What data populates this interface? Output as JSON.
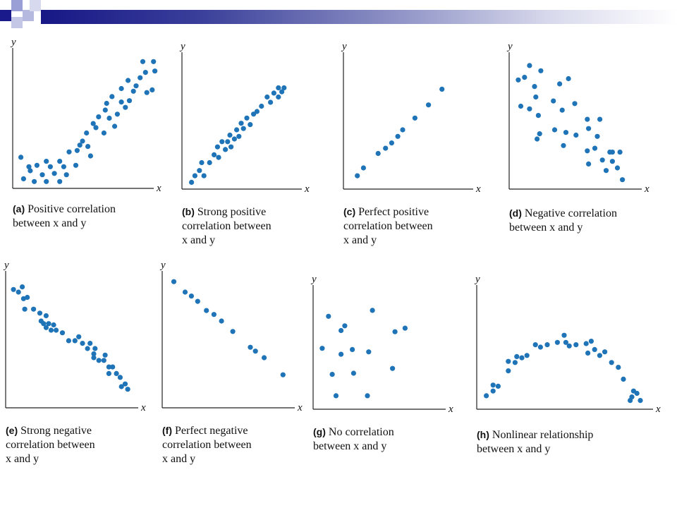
{
  "theme": {
    "dot_color": "#1f73b7",
    "band_color_dark": "#171786",
    "logo_dark": "#1a1a8c",
    "logo_light": "#9aa0d6"
  },
  "chart_data": [
    {
      "id": "a",
      "type": "scatter",
      "xlabel": "x",
      "ylabel": "y",
      "xlim": [
        0,
        10
      ],
      "ylim": [
        0,
        10
      ],
      "caption_tag": "(a)",
      "caption_text": "Positive correlation\nbetween x and y",
      "points": [
        [
          0.4,
          2.1
        ],
        [
          1.0,
          1.4
        ],
        [
          1.6,
          1.5
        ],
        [
          2.3,
          1.8
        ],
        [
          2.6,
          1.4
        ],
        [
          3.3,
          1.8
        ],
        [
          3.6,
          1.4
        ],
        [
          0.6,
          0.5
        ],
        [
          1.1,
          1.1
        ],
        [
          1.4,
          0.3
        ],
        [
          2.0,
          0.8
        ],
        [
          2.3,
          0.3
        ],
        [
          2.9,
          0.9
        ],
        [
          3.3,
          0.3
        ],
        [
          3.8,
          0.8
        ],
        [
          4.0,
          2.5
        ],
        [
          4.5,
          1.5
        ],
        [
          4.6,
          2.6
        ],
        [
          4.8,
          3.0
        ],
        [
          5.0,
          3.3
        ],
        [
          5.3,
          3.9
        ],
        [
          5.4,
          2.9
        ],
        [
          5.6,
          2.2
        ],
        [
          5.8,
          4.6
        ],
        [
          6.0,
          4.3
        ],
        [
          6.2,
          5.1
        ],
        [
          6.6,
          3.9
        ],
        [
          6.7,
          5.6
        ],
        [
          6.8,
          6.1
        ],
        [
          7.0,
          5.0
        ],
        [
          7.2,
          6.6
        ],
        [
          7.4,
          4.4
        ],
        [
          7.6,
          5.3
        ],
        [
          7.9,
          6.2
        ],
        [
          7.9,
          7.2
        ],
        [
          8.2,
          5.8
        ],
        [
          8.5,
          6.3
        ],
        [
          8.4,
          7.8
        ],
        [
          8.8,
          7.0
        ],
        [
          9.3,
          8.0
        ],
        [
          9.0,
          7.4
        ],
        [
          9.8,
          6.9
        ],
        [
          9.7,
          8.4
        ],
        [
          9.5,
          9.2
        ],
        [
          10.2,
          7.1
        ],
        [
          10.4,
          8.5
        ],
        [
          10.3,
          9.2
        ]
      ]
    },
    {
      "id": "b",
      "type": "scatter",
      "xlabel": "x",
      "ylabel": "y",
      "xlim": [
        0,
        10
      ],
      "ylim": [
        0,
        10
      ],
      "caption_tag": "(b)",
      "caption_text": "Strong positive\ncorrelation between\nx and y",
      "points": [
        [
          0.6,
          0.3
        ],
        [
          0.9,
          0.8
        ],
        [
          1.3,
          1.2
        ],
        [
          1.7,
          0.8
        ],
        [
          1.5,
          1.8
        ],
        [
          2.2,
          1.8
        ],
        [
          2.6,
          2.4
        ],
        [
          3.0,
          2.2
        ],
        [
          2.9,
          3.0
        ],
        [
          3.3,
          3.4
        ],
        [
          3.6,
          2.8
        ],
        [
          3.8,
          3.4
        ],
        [
          4.0,
          3.9
        ],
        [
          4.1,
          3.0
        ],
        [
          4.4,
          3.6
        ],
        [
          4.6,
          4.3
        ],
        [
          4.8,
          3.8
        ],
        [
          5.0,
          4.8
        ],
        [
          5.2,
          4.4
        ],
        [
          5.5,
          5.2
        ],
        [
          5.8,
          4.7
        ],
        [
          6.1,
          5.5
        ],
        [
          6.4,
          5.7
        ],
        [
          6.8,
          6.1
        ],
        [
          7.3,
          6.8
        ],
        [
          7.6,
          6.4
        ],
        [
          7.9,
          7.1
        ],
        [
          8.3,
          6.8
        ],
        [
          8.6,
          7.2
        ],
        [
          8.3,
          7.5
        ],
        [
          8.8,
          7.5
        ]
      ]
    },
    {
      "id": "c",
      "type": "scatter",
      "xlabel": "x",
      "ylabel": "y",
      "xlim": [
        0,
        10
      ],
      "ylim": [
        0,
        10
      ],
      "caption_tag": "(c)",
      "caption_text": "Perfect positive\ncorrelation between\nx and y",
      "points": [
        [
          0.9,
          0.8
        ],
        [
          1.4,
          1.4
        ],
        [
          2.6,
          2.5
        ],
        [
          3.2,
          2.9
        ],
        [
          3.7,
          3.3
        ],
        [
          4.2,
          3.8
        ],
        [
          4.6,
          4.3
        ],
        [
          5.6,
          5.2
        ],
        [
          6.7,
          6.2
        ],
        [
          7.8,
          7.4
        ]
      ]
    },
    {
      "id": "d",
      "type": "scatter",
      "xlabel": "x",
      "ylabel": "y",
      "xlim": [
        0,
        10
      ],
      "ylim": [
        0,
        10
      ],
      "caption_tag": "(d)",
      "caption_text": "Negative correlation\nbetween x and y",
      "points": [
        [
          0.5,
          8.1
        ],
        [
          1.0,
          8.3
        ],
        [
          1.4,
          9.2
        ],
        [
          1.8,
          7.6
        ],
        [
          2.3,
          8.8
        ],
        [
          0.7,
          6.1
        ],
        [
          1.4,
          5.9
        ],
        [
          1.9,
          6.8
        ],
        [
          2.1,
          5.4
        ],
        [
          2.2,
          4.0
        ],
        [
          2.0,
          3.6
        ],
        [
          3.3,
          6.5
        ],
        [
          3.4,
          4.3
        ],
        [
          3.8,
          7.8
        ],
        [
          4.0,
          5.8
        ],
        [
          4.3,
          4.1
        ],
        [
          4.1,
          3.1
        ],
        [
          4.5,
          8.2
        ],
        [
          5.0,
          6.3
        ],
        [
          5.1,
          3.9
        ],
        [
          6.0,
          5.1
        ],
        [
          6.1,
          4.4
        ],
        [
          6.0,
          2.7
        ],
        [
          6.1,
          1.7
        ],
        [
          6.6,
          2.9
        ],
        [
          6.8,
          3.8
        ],
        [
          7.0,
          5.1
        ],
        [
          7.2,
          2.0
        ],
        [
          7.5,
          1.2
        ],
        [
          7.8,
          2.6
        ],
        [
          8.0,
          2.6
        ],
        [
          8.0,
          1.9
        ],
        [
          8.4,
          1.4
        ],
        [
          8.6,
          2.6
        ],
        [
          8.8,
          0.5
        ]
      ]
    },
    {
      "id": "e",
      "type": "scatter",
      "xlabel": "x",
      "ylabel": "y",
      "xlim": [
        0,
        10
      ],
      "ylim": [
        0,
        10
      ],
      "caption_tag": "(e)",
      "caption_text": "Strong negative\ncorrelation between\nx and y",
      "points": [
        [
          0.4,
          8.8
        ],
        [
          0.8,
          8.6
        ],
        [
          1.1,
          9.0
        ],
        [
          1.2,
          8.1
        ],
        [
          1.5,
          8.2
        ],
        [
          1.3,
          7.3
        ],
        [
          2.0,
          7.3
        ],
        [
          2.5,
          7.0
        ],
        [
          3.0,
          6.8
        ],
        [
          2.6,
          6.4
        ],
        [
          2.8,
          6.2
        ],
        [
          3.2,
          6.2
        ],
        [
          3.6,
          6.1
        ],
        [
          3.0,
          5.9
        ],
        [
          3.4,
          5.7
        ],
        [
          3.8,
          5.7
        ],
        [
          4.3,
          5.5
        ],
        [
          4.8,
          4.9
        ],
        [
          5.3,
          4.9
        ],
        [
          5.6,
          5.2
        ],
        [
          5.9,
          4.7
        ],
        [
          6.3,
          4.3
        ],
        [
          6.5,
          4.7
        ],
        [
          6.8,
          3.9
        ],
        [
          6.8,
          3.6
        ],
        [
          6.9,
          4.3
        ],
        [
          7.2,
          3.4
        ],
        [
          7.6,
          3.4
        ],
        [
          7.7,
          3.8
        ],
        [
          8.0,
          2.9
        ],
        [
          8.3,
          2.9
        ],
        [
          8.0,
          2.4
        ],
        [
          8.6,
          2.4
        ],
        [
          8.9,
          2.1
        ],
        [
          9.0,
          1.4
        ],
        [
          9.3,
          1.6
        ],
        [
          9.5,
          1.2
        ]
      ]
    },
    {
      "id": "f",
      "type": "scatter",
      "xlabel": "x",
      "ylabel": "y",
      "xlim": [
        0,
        10
      ],
      "ylim": [
        0,
        10
      ],
      "caption_tag": "(f)",
      "caption_text": "Perfect negative\ncorrelation between\nx and y",
      "points": [
        [
          0.7,
          9.4
        ],
        [
          1.6,
          8.6
        ],
        [
          2.1,
          8.3
        ],
        [
          2.6,
          7.9
        ],
        [
          3.3,
          7.2
        ],
        [
          3.9,
          6.9
        ],
        [
          4.5,
          6.4
        ],
        [
          5.4,
          5.6
        ],
        [
          6.8,
          4.4
        ],
        [
          7.2,
          4.1
        ],
        [
          7.9,
          3.6
        ],
        [
          9.4,
          2.3
        ]
      ]
    },
    {
      "id": "g",
      "type": "scatter",
      "xlabel": "x",
      "ylabel": "y",
      "xlim": [
        0,
        10
      ],
      "ylim": [
        0,
        10
      ],
      "caption_tag": "(g)",
      "caption_text": "No correlation\nbetween x and y",
      "points": [
        [
          0.5,
          4.9
        ],
        [
          1.0,
          7.6
        ],
        [
          2.0,
          6.4
        ],
        [
          2.3,
          6.8
        ],
        [
          4.5,
          8.1
        ],
        [
          2.0,
          4.4
        ],
        [
          2.9,
          4.8
        ],
        [
          1.3,
          2.7
        ],
        [
          3.0,
          2.8
        ],
        [
          1.6,
          0.9
        ],
        [
          4.2,
          4.6
        ],
        [
          4.1,
          0.9
        ],
        [
          6.3,
          6.3
        ],
        [
          7.1,
          6.6
        ],
        [
          6.1,
          3.2
        ]
      ]
    },
    {
      "id": "h",
      "type": "scatter",
      "xlabel": "x",
      "ylabel": "y",
      "xlim": [
        0,
        10
      ],
      "ylim": [
        0,
        10
      ],
      "caption_tag": "(h)",
      "caption_text": "Nonlinear relationship\nbetween x and y",
      "points": [
        [
          0.4,
          0.9
        ],
        [
          0.8,
          1.3
        ],
        [
          0.8,
          1.8
        ],
        [
          1.1,
          1.7
        ],
        [
          1.7,
          3.0
        ],
        [
          1.7,
          3.8
        ],
        [
          2.1,
          3.7
        ],
        [
          2.2,
          4.2
        ],
        [
          2.5,
          4.1
        ],
        [
          2.8,
          4.3
        ],
        [
          3.3,
          5.2
        ],
        [
          3.6,
          5.0
        ],
        [
          4.0,
          5.2
        ],
        [
          4.6,
          5.4
        ],
        [
          5.0,
          6.0
        ],
        [
          5.1,
          5.4
        ],
        [
          5.3,
          5.1
        ],
        [
          5.7,
          5.2
        ],
        [
          6.3,
          5.3
        ],
        [
          6.6,
          5.5
        ],
        [
          6.4,
          4.5
        ],
        [
          6.8,
          4.8
        ],
        [
          7.1,
          4.3
        ],
        [
          7.4,
          4.6
        ],
        [
          7.8,
          3.7
        ],
        [
          8.2,
          3.3
        ],
        [
          8.5,
          2.3
        ],
        [
          9.0,
          0.8
        ],
        [
          9.1,
          1.3
        ],
        [
          9.3,
          1.1
        ],
        [
          9.5,
          0.5
        ],
        [
          8.9,
          0.5
        ]
      ]
    }
  ]
}
